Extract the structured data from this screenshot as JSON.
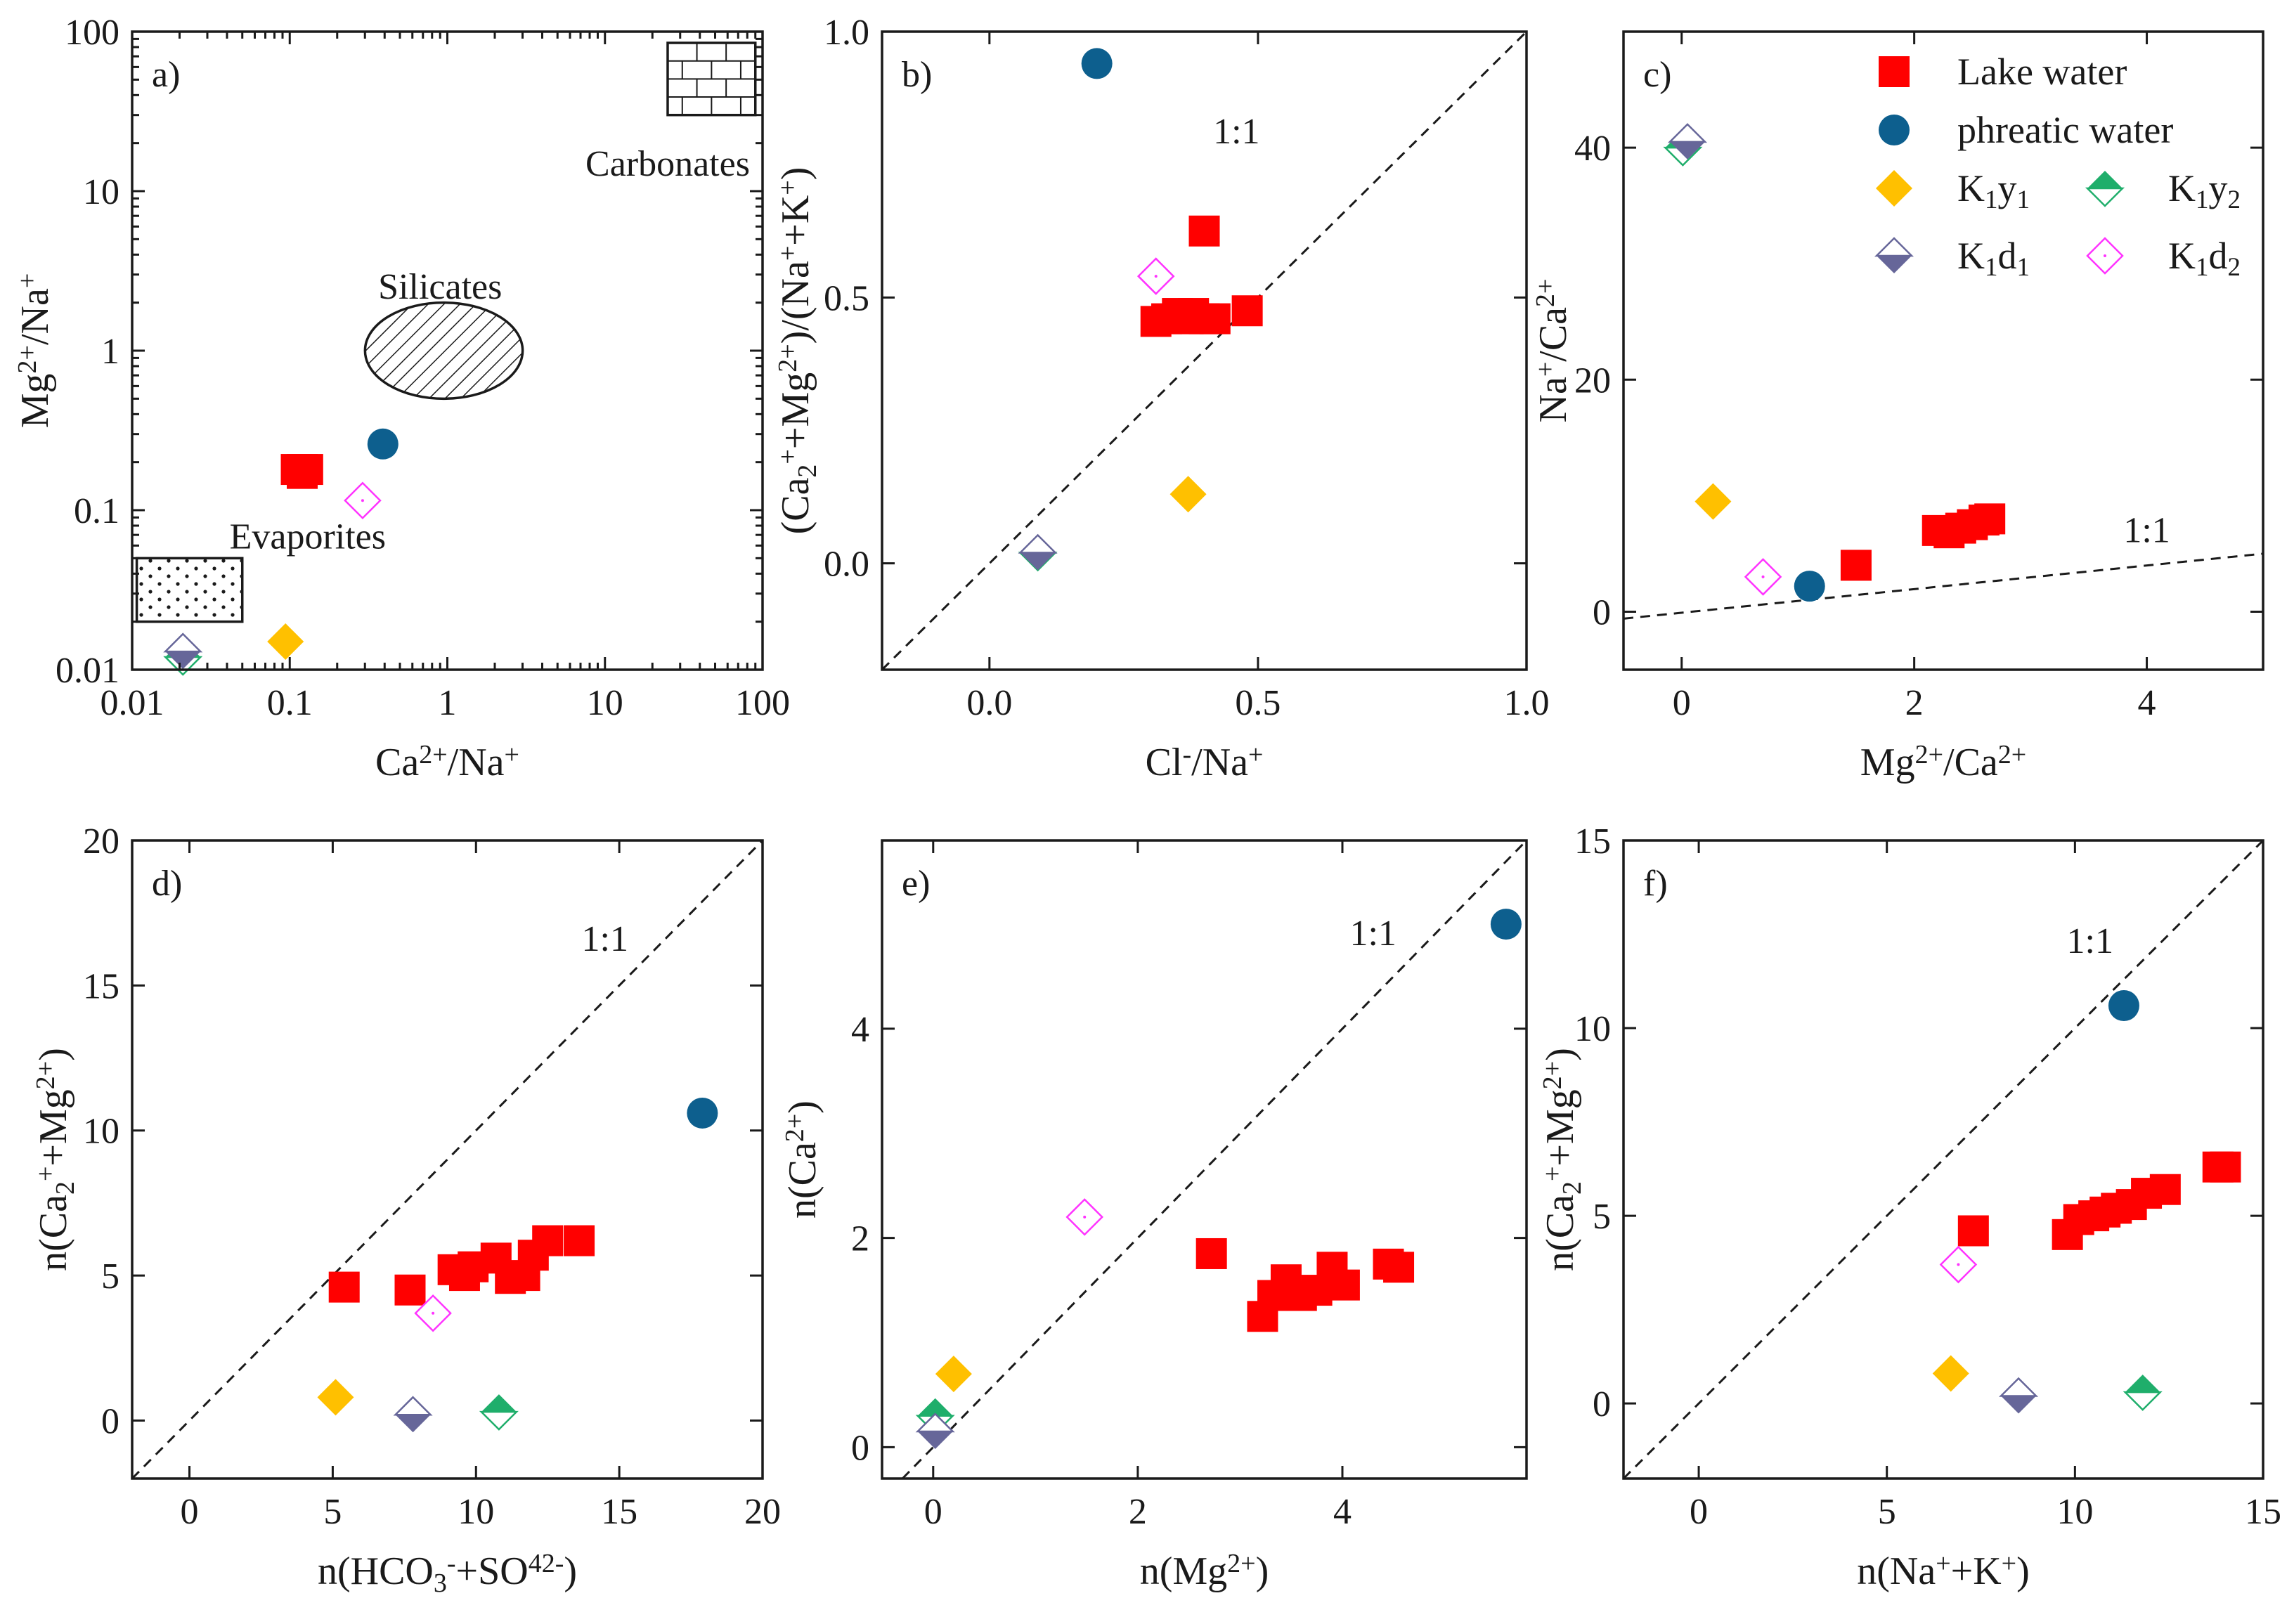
{
  "colors": {
    "lake": "#ff0000",
    "phreatic": "#0d5f8e",
    "k1y1": "#ffc000",
    "k1y2": "#1fae6b",
    "k1d1": "#666699",
    "k1d2": "#ff33ff",
    "ink": "#1a1a1a"
  },
  "legend": {
    "lake": "Lake water",
    "phreatic": "phreatic water",
    "k1y1": "K1y1",
    "k1y2": "K1y2",
    "k1d1": "K1d1",
    "k1d2": "K1d2"
  },
  "chart_data": [
    {
      "panel": "a)",
      "type": "scatter",
      "xlabel": "Ca2+/Na+",
      "ylabel": "Mg2+/Na+",
      "xscale": "log",
      "yscale": "log",
      "xlim": [
        0.01,
        100
      ],
      "ylim": [
        0.01,
        100
      ],
      "xticks": [
        "0.01",
        "0.1",
        "1",
        "10",
        "100"
      ],
      "yticks": [
        "0.01",
        "0.1",
        "1",
        "10",
        "100"
      ],
      "regions": [
        "Silicates",
        "Evaporites",
        "Carbonates"
      ],
      "series": [
        {
          "name": "Lake water",
          "key": "lake",
          "points": [
            [
              0.11,
              0.18
            ],
            [
              0.12,
              0.18
            ],
            [
              0.13,
              0.18
            ],
            [
              0.12,
              0.17
            ]
          ]
        },
        {
          "name": "phreatic water",
          "key": "phreatic",
          "points": [
            [
              0.39,
              0.26
            ]
          ]
        },
        {
          "name": "K1y1",
          "key": "k1y1",
          "points": [
            [
              0.094,
              0.015
            ]
          ]
        },
        {
          "name": "K1y2",
          "key": "k1y2",
          "points": [
            [
              0.021,
              0.012
            ]
          ]
        },
        {
          "name": "K1d1",
          "key": "k1d1",
          "points": [
            [
              0.021,
              0.013
            ]
          ]
        },
        {
          "name": "K1d2",
          "key": "k1d2",
          "points": [
            [
              0.29,
              0.115
            ]
          ]
        }
      ]
    },
    {
      "panel": "b)",
      "type": "scatter",
      "xlabel": "Cl-/Na+",
      "ylabel": "(Ca2++Mg2+)/(Na++K+)",
      "xlim": [
        -0.2,
        1.0
      ],
      "ylim": [
        -0.2,
        1.0
      ],
      "xticks": [
        "0.0",
        "0.5",
        "1.0"
      ],
      "yticks": [
        "0.0",
        "0.5",
        "1.0"
      ],
      "annotation": "1:1",
      "series": [
        {
          "name": "Lake water",
          "key": "lake",
          "points": [
            [
              0.4,
              0.625
            ],
            [
              0.31,
              0.455
            ],
            [
              0.33,
              0.46
            ],
            [
              0.35,
              0.47
            ],
            [
              0.37,
              0.46
            ],
            [
              0.38,
              0.47
            ],
            [
              0.4,
              0.46
            ],
            [
              0.42,
              0.46
            ],
            [
              0.48,
              0.475
            ]
          ]
        },
        {
          "name": "phreatic water",
          "key": "phreatic",
          "points": [
            [
              0.2,
              0.94
            ]
          ]
        },
        {
          "name": "K1y1",
          "key": "k1y1",
          "points": [
            [
              0.37,
              0.13
            ]
          ]
        },
        {
          "name": "K1y2",
          "key": "k1y2",
          "points": [
            [
              0.09,
              0.02
            ]
          ]
        },
        {
          "name": "K1d1",
          "key": "k1d1",
          "points": [
            [
              0.09,
              0.02
            ]
          ]
        },
        {
          "name": "K1d2",
          "key": "k1d2",
          "points": [
            [
              0.31,
              0.54
            ]
          ]
        }
      ]
    },
    {
      "panel": "c)",
      "type": "scatter",
      "xlabel": "Mg2+/Ca2+",
      "ylabel": "Na+/Ca2+",
      "xlim": [
        -0.5,
        5
      ],
      "ylim": [
        -5,
        50
      ],
      "xticks": [
        "0",
        "2",
        "4"
      ],
      "yticks": [
        "0",
        "20",
        "40"
      ],
      "annotation": "1:1",
      "series": [
        {
          "name": "Lake water",
          "key": "lake",
          "points": [
            [
              1.5,
              4
            ],
            [
              2.2,
              7
            ],
            [
              2.3,
              6.8
            ],
            [
              2.4,
              7.2
            ],
            [
              2.5,
              7.5
            ],
            [
              2.6,
              7.9
            ],
            [
              2.65,
              8
            ]
          ]
        },
        {
          "name": "phreatic water",
          "key": "phreatic",
          "points": [
            [
              1.1,
              2.2
            ]
          ]
        },
        {
          "name": "K1y1",
          "key": "k1y1",
          "points": [
            [
              0.27,
              9.5
            ]
          ]
        },
        {
          "name": "K1y2",
          "key": "k1y2",
          "points": [
            [
              0.01,
              40
            ]
          ]
        },
        {
          "name": "K1d1",
          "key": "k1d1",
          "points": [
            [
              0.05,
              40.5
            ]
          ]
        },
        {
          "name": "K1d2",
          "key": "k1d2",
          "points": [
            [
              0.7,
              3
            ]
          ]
        }
      ]
    },
    {
      "panel": "d)",
      "type": "scatter",
      "xlabel": "n(HCO3-+SO42-)",
      "ylabel": "n(Ca2++Mg2+)",
      "xlim": [
        -2,
        20
      ],
      "ylim": [
        -2,
        20
      ],
      "xticks": [
        "0",
        "5",
        "10",
        "15",
        "20"
      ],
      "yticks": [
        "0",
        "5",
        "10",
        "15",
        "20"
      ],
      "annotation": "1:1",
      "series": [
        {
          "name": "Lake water",
          "key": "lake",
          "points": [
            [
              5.4,
              4.6
            ],
            [
              7.7,
              4.5
            ],
            [
              9.2,
              5.2
            ],
            [
              9.6,
              5.0
            ],
            [
              9.9,
              5.3
            ],
            [
              10.7,
              5.6
            ],
            [
              11.2,
              4.9
            ],
            [
              11.7,
              5.0
            ],
            [
              12.0,
              5.7
            ],
            [
              12.5,
              6.2
            ],
            [
              13.6,
              6.2
            ]
          ]
        },
        {
          "name": "phreatic water",
          "key": "phreatic",
          "points": [
            [
              17.9,
              10.6
            ]
          ]
        },
        {
          "name": "K1y1",
          "key": "k1y1",
          "points": [
            [
              5.1,
              0.8
            ]
          ]
        },
        {
          "name": "K1y2",
          "key": "k1y2",
          "points": [
            [
              10.8,
              0.3
            ]
          ]
        },
        {
          "name": "K1d1",
          "key": "k1d1",
          "points": [
            [
              7.8,
              0.2
            ]
          ]
        },
        {
          "name": "K1d2",
          "key": "k1d2",
          "points": [
            [
              8.5,
              3.7
            ]
          ]
        }
      ]
    },
    {
      "panel": "e)",
      "type": "scatter",
      "xlabel": "n(Mg2+)",
      "ylabel": "n(Ca2+)",
      "xlim": [
        -0.5,
        5.8
      ],
      "ylim": [
        -0.3,
        5.8
      ],
      "xticks": [
        "0",
        "2",
        "4"
      ],
      "yticks": [
        "0",
        "2",
        "4"
      ],
      "annotation": "1:1",
      "series": [
        {
          "name": "Lake water",
          "key": "lake",
          "points": [
            [
              2.72,
              1.85
            ],
            [
              3.22,
              1.25
            ],
            [
              3.32,
              1.45
            ],
            [
              3.45,
              1.6
            ],
            [
              3.6,
              1.45
            ],
            [
              3.75,
              1.5
            ],
            [
              3.9,
              1.72
            ],
            [
              4.02,
              1.55
            ],
            [
              4.45,
              1.75
            ],
            [
              4.55,
              1.72
            ]
          ]
        },
        {
          "name": "phreatic water",
          "key": "phreatic",
          "points": [
            [
              5.6,
              5.0
            ]
          ]
        },
        {
          "name": "K1y1",
          "key": "k1y1",
          "points": [
            [
              0.2,
              0.7
            ]
          ]
        },
        {
          "name": "K1y2",
          "key": "k1y2",
          "points": [
            [
              0.02,
              0.3
            ]
          ]
        },
        {
          "name": "K1d1",
          "key": "k1d1",
          "points": [
            [
              0.02,
              0.15
            ]
          ]
        },
        {
          "name": "K1d2",
          "key": "k1d2",
          "points": [
            [
              1.48,
              2.2
            ]
          ]
        }
      ]
    },
    {
      "panel": "f)",
      "type": "scatter",
      "xlabel": "n(Na++K+)",
      "ylabel": "n(Ca2++Mg2+)",
      "xlim": [
        -2,
        15
      ],
      "ylim": [
        -2,
        15
      ],
      "xticks": [
        "0",
        "5",
        "10",
        "15"
      ],
      "yticks": [
        "0",
        "5",
        "10",
        "15"
      ],
      "annotation": "1:1",
      "series": [
        {
          "name": "Lake water",
          "key": "lake",
          "points": [
            [
              7.3,
              4.6
            ],
            [
              9.8,
              4.5
            ],
            [
              10.1,
              4.9
            ],
            [
              10.5,
              5.0
            ],
            [
              10.8,
              5.1
            ],
            [
              11.1,
              5.2
            ],
            [
              11.5,
              5.3
            ],
            [
              11.9,
              5.6
            ],
            [
              12.4,
              5.7
            ],
            [
              13.8,
              6.3
            ],
            [
              14.0,
              6.3
            ]
          ]
        },
        {
          "name": "phreatic water",
          "key": "phreatic",
          "points": [
            [
              11.3,
              10.6
            ]
          ]
        },
        {
          "name": "K1y1",
          "key": "k1y1",
          "points": [
            [
              6.7,
              0.8
            ]
          ]
        },
        {
          "name": "K1y2",
          "key": "k1y2",
          "points": [
            [
              11.8,
              0.3
            ]
          ]
        },
        {
          "name": "K1d1",
          "key": "k1d1",
          "points": [
            [
              8.5,
              0.2
            ]
          ]
        },
        {
          "name": "K1d2",
          "key": "k1d2",
          "points": [
            [
              6.9,
              3.7
            ]
          ]
        }
      ]
    }
  ]
}
